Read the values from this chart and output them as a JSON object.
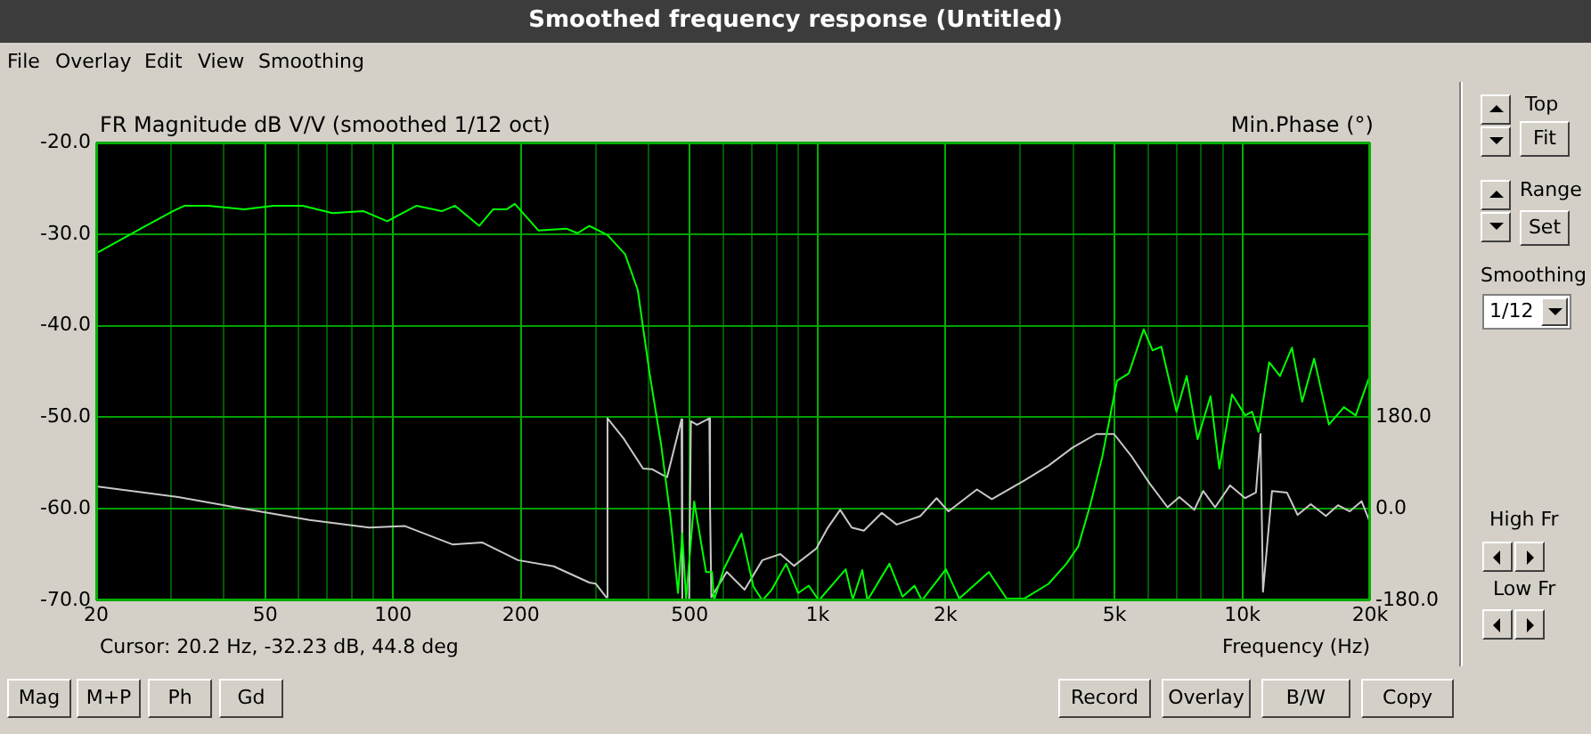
{
  "chart_data": {
    "type": "line",
    "title": "Smoothed frequency response (Untitled)",
    "ylabel": "FR Magnitude dB V/V (smoothed 1/12 oct)",
    "y2label": "Min.Phase (°)",
    "xlabel": "Frequency (Hz)",
    "annotations": [
      "Cursor: 20.2 Hz, -32.23 dB, 44.8 deg",
      "File",
      "Overlay",
      "Edit",
      "View",
      "Smoothing",
      "Top",
      "Fit",
      "Range",
      "Set",
      "Smoothing",
      "1/12",
      "High Fr",
      "Low Fr",
      "Mag",
      "M+P",
      "Ph",
      "Gd",
      "Record",
      "Overlay",
      "B/W",
      "Copy"
    ],
    "log": "x",
    "grid": true,
    "legend": false,
    "marker": "none",
    "line_style": "solid",
    "xlim": [
      20,
      20000
    ],
    "xticks": [
      20,
      {
        "value": 30,
        "label": null
      },
      {
        "value": 40,
        "label": null
      },
      50,
      {
        "value": 60,
        "label": null
      },
      {
        "value": 70,
        "label": null
      },
      {
        "value": 80,
        "label": null
      },
      {
        "value": 90,
        "label": null
      },
      100,
      200,
      {
        "value": 300,
        "label": null
      },
      {
        "value": 400,
        "label": null
      },
      500,
      {
        "value": 600,
        "label": null
      },
      {
        "value": 700,
        "label": null
      },
      {
        "value": 800,
        "label": null
      },
      {
        "value": 900,
        "label": null
      },
      {
        "value": 1000,
        "label": "1k"
      },
      {
        "value": 2000,
        "label": "2k"
      },
      {
        "value": 3000,
        "label": null
      },
      {
        "value": 4000,
        "label": null
      },
      {
        "value": 5000,
        "label": "5k"
      },
      {
        "value": 6000,
        "label": null
      },
      {
        "value": 7000,
        "label": null
      },
      {
        "value": 8000,
        "label": null
      },
      {
        "value": 9000,
        "label": null
      },
      {
        "value": 10000,
        "label": "10k"
      },
      {
        "value": 20000,
        "label": "20k"
      }
    ],
    "ylim": [
      -70,
      -20
    ],
    "yticks": [
      {
        "value": -70,
        "label": "-70.0"
      },
      {
        "value": -60,
        "label": "-60.0"
      },
      {
        "value": -50,
        "label": "-50.0"
      },
      {
        "value": -40,
        "label": "-40.0"
      },
      {
        "value": -30,
        "label": "-30.0"
      },
      {
        "value": -20,
        "label": "-20.0"
      }
    ],
    "y2lim": [
      -180,
      720
    ],
    "y2ticks": [
      {
        "value": -180,
        "label": "-180.0"
      },
      {
        "value": 0,
        "label": "0.0"
      },
      {
        "value": 180,
        "label": "180.0"
      }
    ],
    "series": [
      {
        "color": "#00ff00",
        "x": [
          20,
          25.7,
          30.3,
          32.3,
          36.7,
          44.6,
          52.3,
          61.3,
          72,
          85.3,
          96.9,
          113.6,
          130.3,
          140,
          159.6,
          172,
          185,
          193.6,
          220,
          256,
          272,
          290,
          320,
          352,
          377,
          402,
          428,
          450,
          469,
          480,
          490,
          512,
          546,
          564,
          570,
          601,
          662,
          706,
          741,
          778,
          843,
          900,
          953,
          1007,
          1164,
          1210,
          1274,
          1310,
          1476,
          1585,
          1691,
          1760,
          2005,
          2155,
          2530,
          2787,
          3070,
          3496,
          3854,
          4110,
          4385,
          4677,
          5071,
          5408,
          5860,
          6150,
          6450,
          7000,
          7400,
          7850,
          8420,
          8830,
          9460,
          10160,
          10550,
          10920,
          11570,
          12270,
          13090,
          13840,
          14770,
          16000,
          17350,
          18500,
          20000
        ],
        "values": [
          -32.1,
          -29.3,
          -27.5,
          -26.9,
          -26.9,
          -27.3,
          -26.9,
          -26.9,
          -27.7,
          -27.5,
          -28.6,
          -26.9,
          -27.5,
          -26.9,
          -29.1,
          -27.3,
          -27.3,
          -26.7,
          -29.6,
          -29.4,
          -29.9,
          -29.1,
          -30.1,
          -32.2,
          -36.1,
          -45.2,
          -53,
          -60.8,
          -69.2,
          -62.7,
          -69.9,
          -59.2,
          -66.9,
          -66.9,
          -70,
          -66.6,
          -62.7,
          -68.5,
          -70,
          -68.9,
          -66,
          -69.2,
          -68.4,
          -70,
          -66.6,
          -69.9,
          -66.7,
          -70,
          -66,
          -69.6,
          -68.4,
          -70,
          -66.6,
          -69.8,
          -66.9,
          -69.8,
          -69.8,
          -68.2,
          -66,
          -64.1,
          -59.6,
          -54.4,
          -46,
          -45.2,
          -40.4,
          -42.7,
          -42.3,
          -49.4,
          -45.5,
          -52.4,
          -47.7,
          -55.6,
          -47.5,
          -49.8,
          -49.4,
          -51.6,
          -44,
          -45.5,
          -42.4,
          -48.3,
          -43.6,
          -50.8,
          -48.9,
          -49.8,
          -45.4
        ]
      },
      {
        "color": "#c8c8c8",
        "axis": "y2",
        "x": [
          20,
          31.2,
          46,
          63.6,
          87.9,
          106.7,
          138,
          162,
          197,
          239,
          290,
          300,
          318,
          320,
          350,
          388,
          407,
          442,
          478,
          480,
          498,
          503,
          520,
          556,
          558,
          562,
          611,
          673,
          741,
          817,
          880,
          993,
          1057,
          1130,
          1203,
          1285,
          1416,
          1535,
          1747,
          1906,
          2033,
          2372,
          2572,
          3075,
          3500,
          3980,
          4530,
          4990,
          5500,
          6050,
          6670,
          7110,
          7710,
          8090,
          8630,
          9360,
          10160,
          10770,
          11040,
          11190,
          11750,
          12740,
          13500,
          14500,
          15740,
          16800,
          17920,
          19100,
          20000
        ],
        "values": [
          44,
          23,
          -2,
          -22,
          -37,
          -34,
          -70,
          -66,
          -101,
          -113,
          -145,
          -147,
          -174,
          178,
          137,
          79,
          78,
          62,
          176,
          -179,
          -179,
          172,
          165,
          178,
          4,
          -174,
          -124,
          -159,
          -101,
          -89,
          -112,
          -78,
          -37,
          -2,
          -37,
          -43,
          -8,
          -31,
          -14,
          21,
          -5,
          38,
          19,
          56,
          85,
          120,
          147,
          147,
          102,
          50,
          3,
          23,
          -2,
          35,
          3,
          46,
          21,
          32,
          147,
          -163,
          35,
          32,
          -12,
          9,
          -14,
          7,
          -5,
          15,
          -27
        ]
      }
    ]
  }
}
